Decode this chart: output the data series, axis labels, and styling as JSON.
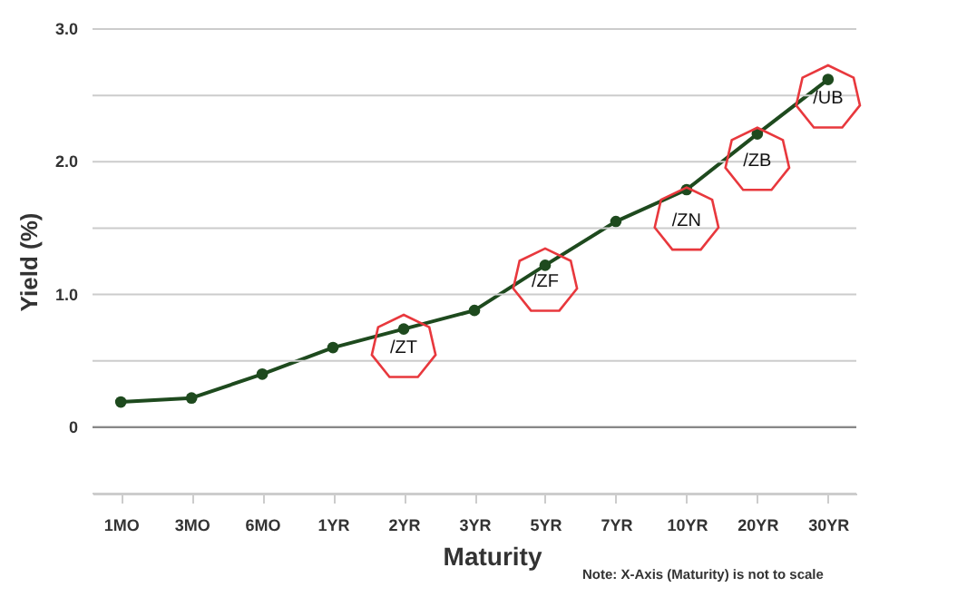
{
  "chart_data": {
    "type": "line",
    "xlabel": "Maturity",
    "ylabel": "Yield (%)",
    "categories": [
      "1MO",
      "3MO",
      "6MO",
      "1YR",
      "2YR",
      "3YR",
      "5YR",
      "7YR",
      "10YR",
      "20YR",
      "30YR"
    ],
    "series": [
      {
        "color": "#1e4a1e",
        "values": [
          0.19,
          0.22,
          0.4,
          0.6,
          0.74,
          0.88,
          1.22,
          1.55,
          1.79,
          2.21,
          2.62
        ]
      }
    ],
    "ylim": [
      -0.5,
      3.0
    ],
    "yticks": [
      {
        "value": -0.5,
        "label": null
      },
      {
        "value": 0,
        "label": "0"
      },
      {
        "value": 0.5,
        "label": null
      },
      {
        "value": 1,
        "label": "1.0"
      },
      {
        "value": 1.5,
        "label": null
      },
      {
        "value": 2,
        "label": "2.0"
      },
      {
        "value": 2.5,
        "label": null
      },
      {
        "value": 3,
        "label": "3.0"
      }
    ],
    "grid": "y",
    "marker": "circle",
    "line_style": "solid",
    "annotations": [
      {
        "text": "/ZT",
        "x": "2YR",
        "y": 0.6
      },
      {
        "text": "/ZF",
        "x": "5YR",
        "y": 1.1
      },
      {
        "text": "/ZN",
        "x": "10YR",
        "y": 1.56
      },
      {
        "text": "/ZB",
        "x": "20YR",
        "y": 2.01
      },
      {
        "text": "/UB",
        "x": "30YR",
        "y": 2.48
      },
      "Note: X-Axis (Maturity) is not to scale"
    ]
  }
}
